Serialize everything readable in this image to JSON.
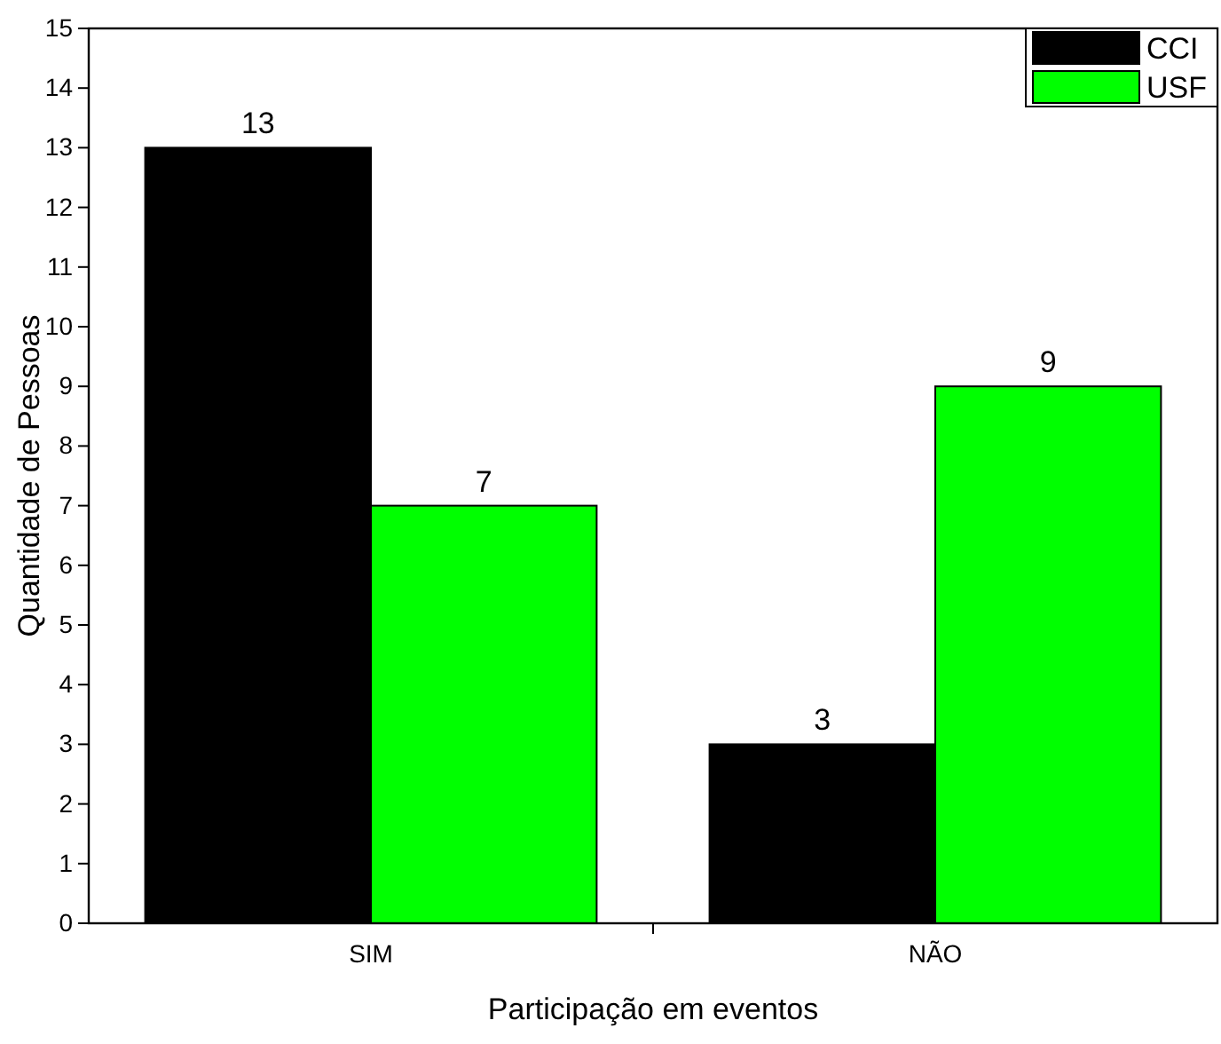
{
  "chart_data": {
    "type": "bar",
    "xlabel": "Participação em eventos",
    "ylabel": "Quantidade de Pessoas",
    "categories": [
      "SIM",
      "NÃO"
    ],
    "series": [
      {
        "name": "CCI",
        "color": "#000000",
        "values": [
          13,
          3
        ]
      },
      {
        "name": "USF",
        "color": "#00ff00",
        "values": [
          7,
          9
        ]
      }
    ],
    "ylim": [
      0,
      15
    ],
    "yticks": [
      0,
      1,
      2,
      3,
      4,
      5,
      6,
      7,
      8,
      9,
      10,
      11,
      12,
      13,
      14,
      15
    ],
    "data_labels": true,
    "legend": "top right",
    "grid": false
  }
}
